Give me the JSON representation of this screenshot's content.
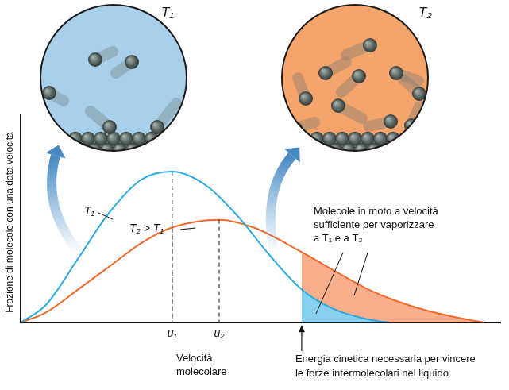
{
  "chart_data": {
    "type": "line",
    "x_title": "Velocità\nmolecolare",
    "y_title": "Frazione di molecole con una data velocità",
    "xlim": [
      0,
      100
    ],
    "ylim": [
      0,
      100
    ],
    "xticks": [
      {
        "value": 31.6,
        "label": "u₁"
      },
      {
        "value": 41.4,
        "label": "u₂"
      }
    ],
    "yticks": [],
    "tick_labels": "x",
    "grid": false,
    "series": [
      {
        "name": "T₁",
        "color": "#29a9e1",
        "x": [
          0,
          5.3,
          12.0,
          18.6,
          25.2,
          31.6,
          38.5,
          45.2,
          51.8,
          58.6,
          65.1,
          71.8,
          76.7
        ],
        "values": [
          0,
          8.6,
          31.0,
          53.4,
          69.0,
          72.8,
          66.4,
          51.5,
          32.8,
          16.0,
          6.7,
          1.9,
          0
        ]
      },
      {
        "name": "T₂ > T₁",
        "color": "#f26a2e",
        "x": [
          0,
          5.3,
          12.0,
          18.6,
          25.2,
          31.6,
          41.4,
          48.5,
          58.6,
          65.1,
          71.8,
          78.4,
          85.0,
          91.7,
          96.7
        ],
        "values": [
          0,
          4.9,
          16.0,
          27.2,
          38.4,
          45.9,
          49.6,
          45.9,
          34.0,
          25.4,
          16.8,
          10.4,
          5.6,
          2.2,
          0
        ]
      }
    ],
    "threshold": {
      "value": 58.6,
      "label": "Energia cinetica necessaria per vincere\nle forze intermolecolari nel liquido"
    },
    "shaded_label": "Molecole in moto a velocità\nsufficiente per vaporizzare\na T₁ e a T₂",
    "insets": [
      {
        "label": "T₁",
        "color": "#a8d0ea"
      },
      {
        "label": "T₂",
        "color": "#f5a46c"
      }
    ]
  }
}
